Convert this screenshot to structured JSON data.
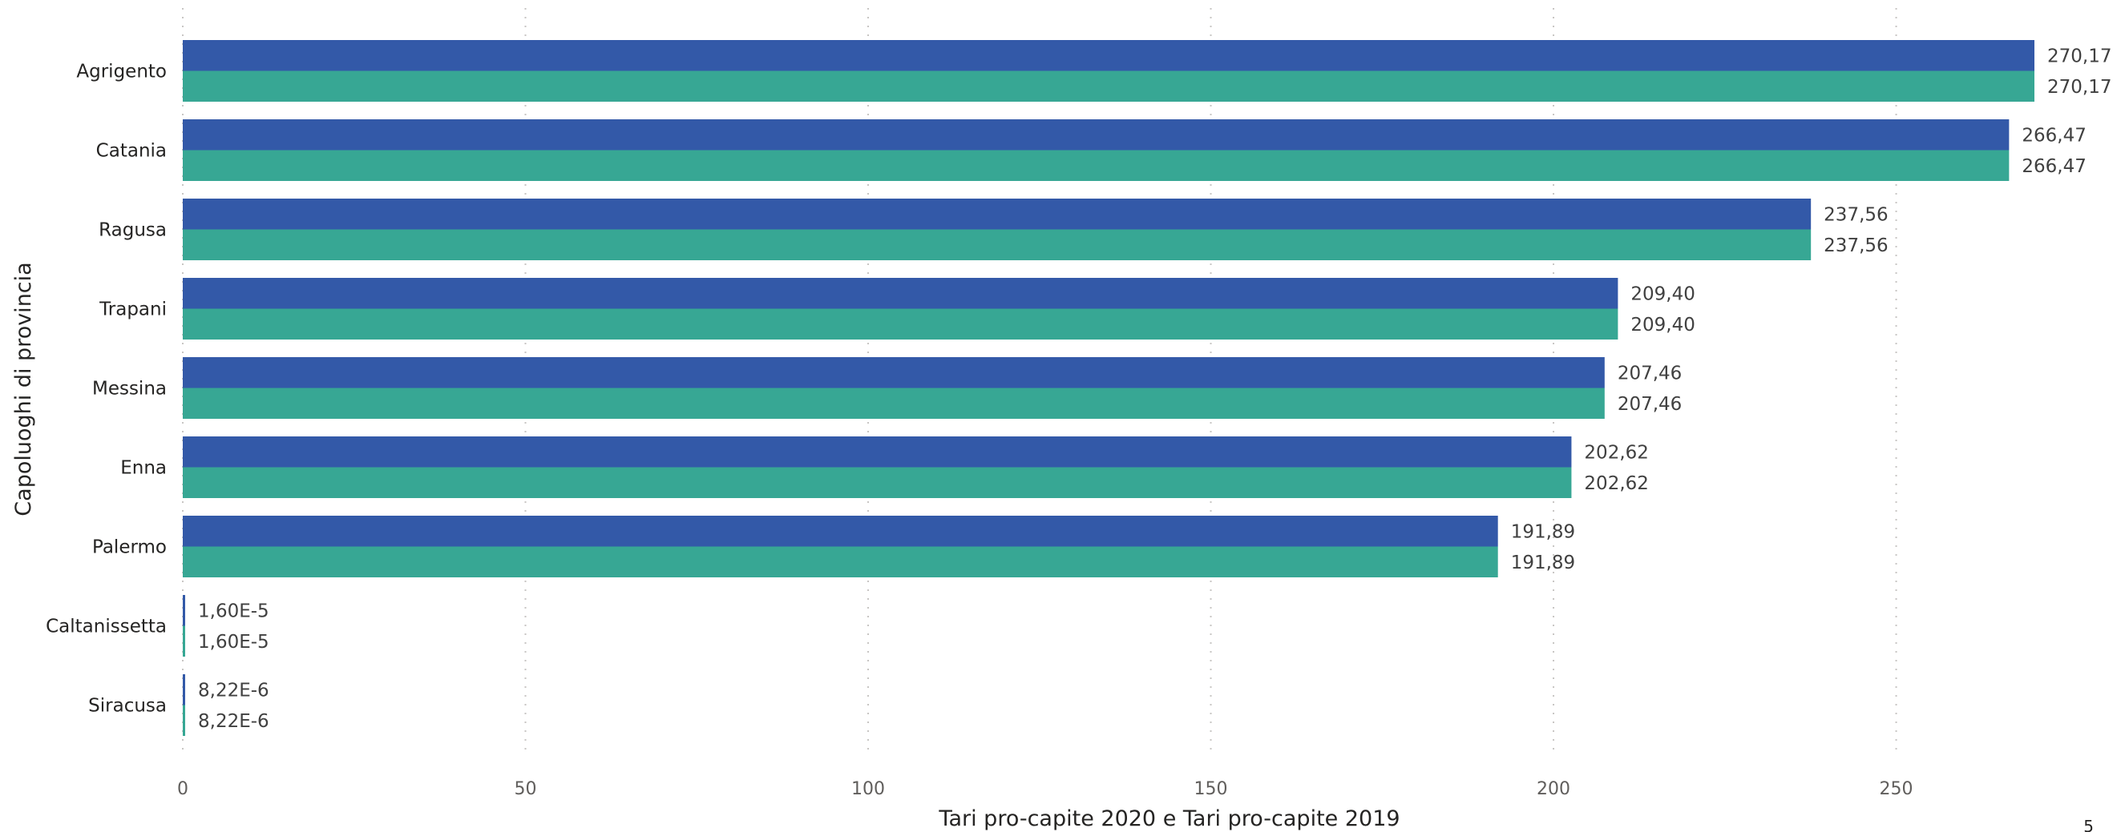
{
  "chart_data": {
    "type": "bar",
    "orientation": "horizontal",
    "title": "",
    "xlabel": "Tari pro-capite 2020 e Tari pro-capite 2019",
    "ylabel": "Capoluoghi di provincia",
    "xlim": [
      0,
      270.17
    ],
    "xticks": [
      0,
      50,
      100,
      150,
      200,
      250
    ],
    "grid": "vertical dotted",
    "legend": "none",
    "categories": [
      "Agrigento",
      "Catania",
      "Ragusa",
      "Trapani",
      "Messina",
      "Enna",
      "Palermo",
      "Caltanissetta",
      "Siracusa"
    ],
    "series": [
      {
        "color": "#3359A8",
        "values": [
          270.17,
          266.47,
          237.56,
          209.4,
          207.46,
          202.62,
          191.89,
          1.6e-05,
          8.22e-06
        ],
        "labels": [
          "270,17",
          "266,47",
          "237,56",
          "209,40",
          "207,46",
          "202,62",
          "191,89",
          "1,60E-5",
          "8,22E-6"
        ]
      },
      {
        "color": "#37A794",
        "values": [
          270.17,
          266.47,
          237.56,
          209.4,
          207.46,
          202.62,
          191.89,
          1.6e-05,
          8.22e-06
        ],
        "labels": [
          "270,17",
          "266,47",
          "237,56",
          "209,40",
          "207,46",
          "202,62",
          "191,89",
          "1,60E-5",
          "8,22E-6"
        ]
      }
    ]
  },
  "page": {
    "corner_text": "5"
  }
}
